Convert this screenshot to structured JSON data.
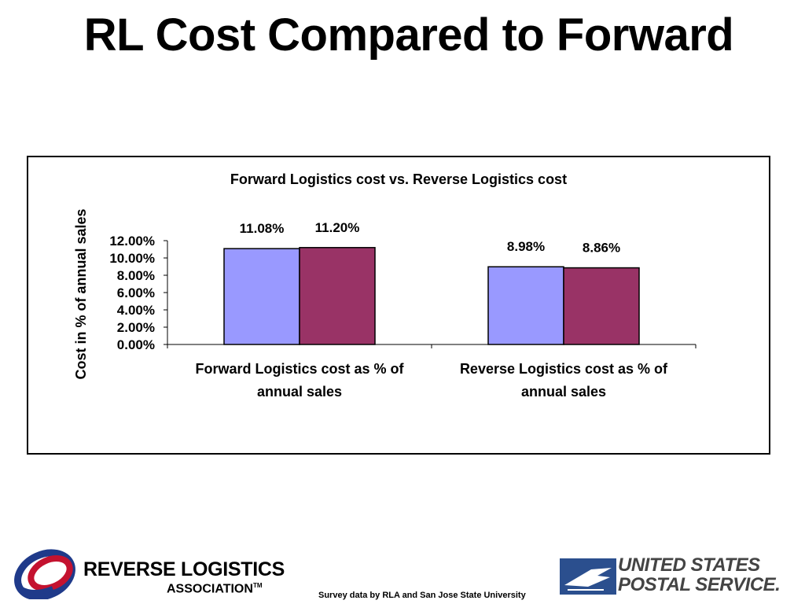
{
  "slide": {
    "title": "RL Cost Compared to Forward",
    "footer_note": "Survey data  by RLA and San Jose State University"
  },
  "logos": {
    "rla_line1": "REVERSE LOGISTICS",
    "rla_line2": "ASSOCIATION",
    "rla_tm": "TM",
    "usps_line1": "UNITED STATES",
    "usps_line2": "POSTAL SERVICE."
  },
  "colors": {
    "series_1": "#9999ff",
    "series_2": "#993366",
    "rla_logo_blue": "#1f3a8a",
    "rla_logo_red": "#c4122f",
    "usps_blue": "#2b4f8e"
  },
  "chart_data": {
    "type": "bar",
    "title": "Forward Logistics cost vs. Reverse Logistics cost",
    "ylabel": "Cost in % of annual sales",
    "xlabel": "",
    "categories": [
      [
        "Forward Logistics cost as % of",
        "annual sales"
      ],
      [
        "Reverse Logistics cost as % of",
        "annual sales"
      ]
    ],
    "series": [
      {
        "values": [
          11.08,
          8.98
        ],
        "labels": [
          "11.08%",
          "8.98%"
        ]
      },
      {
        "values": [
          11.2,
          8.86
        ],
        "labels": [
          "11.20%",
          "8.86%"
        ]
      }
    ],
    "ylim": [
      0,
      12
    ],
    "yticks": [
      0,
      2,
      4,
      6,
      8,
      10,
      12
    ],
    "ytick_labels": [
      "0.00%",
      "2.00%",
      "4.00%",
      "6.00%",
      "8.00%",
      "10.00%",
      "12.00%"
    ],
    "grid": false,
    "legend": "none"
  }
}
